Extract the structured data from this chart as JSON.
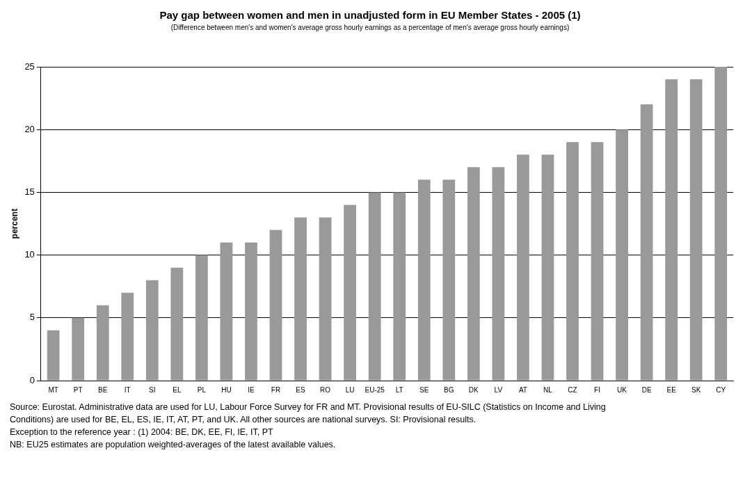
{
  "chart_data": {
    "type": "bar",
    "title": "Pay gap between women and men in unadjusted form in EU Member States - 2005 (1)",
    "subtitle": "(Difference between men's and women's average gross hourly earnings as a percentage of men's average gross hourly earnings)",
    "ylabel": "percent",
    "categories": [
      "MT",
      "PT",
      "BE",
      "IT",
      "SI",
      "EL",
      "PL",
      "HU",
      "IE",
      "FR",
      "ES",
      "RO",
      "LU",
      "EU-25",
      "LT",
      "SE",
      "BG",
      "DK",
      "LV",
      "AT",
      "NL",
      "CZ",
      "FI",
      "UK",
      "DE",
      "EE",
      "SK",
      "CY"
    ],
    "values": [
      4,
      5,
      6,
      7,
      8,
      9,
      10,
      11,
      11,
      12,
      13,
      13,
      14,
      15,
      15,
      16,
      16,
      17,
      17,
      18,
      18,
      19,
      19,
      20,
      22,
      24,
      24,
      25
    ],
    "color": "#999999",
    "ylim": [
      0,
      25
    ],
    "yticks": [
      0,
      5,
      10,
      15,
      20,
      25
    ],
    "grid": "y",
    "legend": false,
    "annotations": [
      "Source: Eurostat. Administrative data are used for LU, Labour Force Survey for FR and MT. Provisional results of EU-SILC (Statistics on Income and Living Conditions) are used for BE, EL, ES, IE, IT, AT, PT, and UK. All other sources are national surveys. SI: Provisional results.",
      "Exception to the reference year : (1) 2004: BE, DK, EE, FI, IE, IT, PT",
      "NB: EU25 estimates are population weighted-averages of the latest available values."
    ]
  }
}
